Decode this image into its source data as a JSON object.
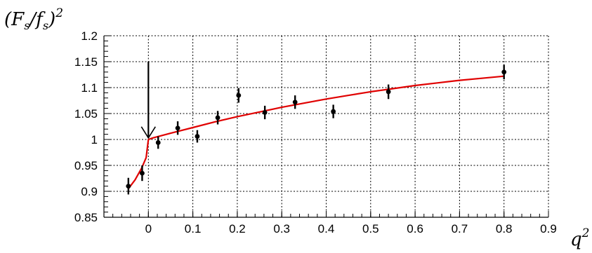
{
  "chart_data": {
    "type": "scatter",
    "title": "",
    "ylabel": "(F_s/f_s)^2",
    "xlabel": "q^2",
    "xlim": [
      -0.1,
      0.9
    ],
    "ylim": [
      0.85,
      1.2
    ],
    "x_ticks": [
      "0",
      "0.1",
      "0.2",
      "0.3",
      "0.4",
      "0.5",
      "0.6",
      "0.7",
      "0.8",
      "0.9"
    ],
    "y_ticks": [
      "0.85",
      "0.9",
      "0.95",
      "1",
      "1.05",
      "1.1",
      "1.15",
      "1.2"
    ],
    "grid": true,
    "legend": "none",
    "series": [
      {
        "kind": "points-with-error-bars",
        "color": "#000000",
        "points": [
          {
            "x": -0.045,
            "y": 0.91,
            "err": 0.016
          },
          {
            "x": -0.014,
            "y": 0.935,
            "err": 0.015
          },
          {
            "x": 0.022,
            "y": 0.994,
            "err": 0.012
          },
          {
            "x": 0.066,
            "y": 1.022,
            "err": 0.013
          },
          {
            "x": 0.11,
            "y": 1.006,
            "err": 0.012
          },
          {
            "x": 0.156,
            "y": 1.042,
            "err": 0.013
          },
          {
            "x": 0.203,
            "y": 1.085,
            "err": 0.014
          },
          {
            "x": 0.262,
            "y": 1.052,
            "err": 0.013
          },
          {
            "x": 0.33,
            "y": 1.072,
            "err": 0.013
          },
          {
            "x": 0.416,
            "y": 1.054,
            "err": 0.013
          },
          {
            "x": 0.54,
            "y": 1.092,
            "err": 0.014
          },
          {
            "x": 0.8,
            "y": 1.13,
            "err": 0.014
          }
        ]
      },
      {
        "kind": "curve",
        "color": "#e00000",
        "x": [
          -0.045,
          -0.03,
          -0.015,
          -0.005,
          0.0,
          0.01,
          0.05,
          0.1,
          0.15,
          0.2,
          0.25,
          0.3,
          0.35,
          0.4,
          0.45,
          0.5,
          0.55,
          0.6,
          0.65,
          0.7,
          0.75,
          0.8
        ],
        "y": [
          0.905,
          0.922,
          0.945,
          0.965,
          1.0,
          1.003,
          1.012,
          1.023,
          1.034,
          1.044,
          1.053,
          1.062,
          1.07,
          1.078,
          1.085,
          1.092,
          1.098,
          1.104,
          1.109,
          1.114,
          1.118,
          1.122
        ]
      }
    ],
    "annotations": [
      {
        "type": "arrow",
        "x": 0.0,
        "y_from": 1.15,
        "y_to": 1.003,
        "color": "#000000"
      }
    ]
  }
}
